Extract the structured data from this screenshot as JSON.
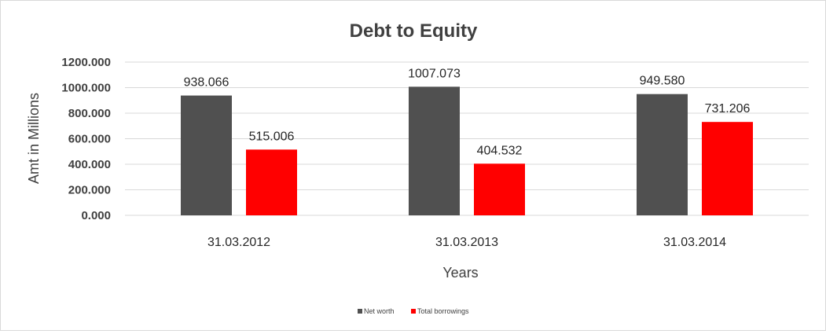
{
  "chart_data": {
    "type": "bar",
    "title": "Debt to Equity",
    "xlabel": "Years",
    "ylabel": "Amt in Millions",
    "categories": [
      "31.03.2012",
      "31.03.2013",
      "31.03.2014"
    ],
    "series": [
      {
        "name": "Net worth",
        "values": [
          938.066,
          1007.073,
          949.58
        ],
        "color": "#505050"
      },
      {
        "name": "Total borrowings",
        "values": [
          515.006,
          404.532,
          731.206
        ],
        "color": "#ff0000"
      }
    ],
    "value_labels": [
      [
        "938.066",
        "1007.073",
        "949.580"
      ],
      [
        "515.006",
        "404.532",
        "731.206"
      ]
    ],
    "ylim": [
      0,
      1200
    ],
    "yticks": [
      "0.000",
      "200.000",
      "400.000",
      "600.000",
      "800.000",
      "1000.000",
      "1200.000"
    ],
    "grid": true,
    "legend_position": "bottom"
  }
}
